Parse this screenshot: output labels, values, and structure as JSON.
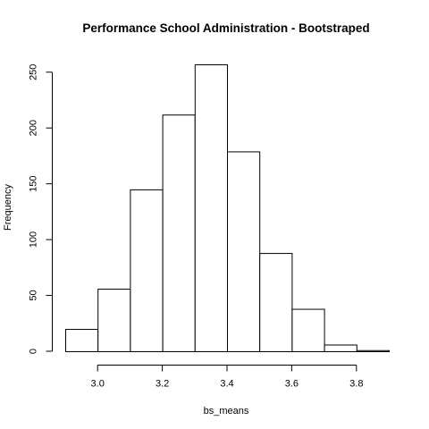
{
  "chart_data": {
    "type": "bar",
    "title": "Performance School Administration - Bootstraped",
    "xlabel": "bs_means",
    "ylabel": "Frequency",
    "bins": [
      {
        "start": 2.9,
        "end": 3.0,
        "count": 20
      },
      {
        "start": 3.0,
        "end": 3.1,
        "count": 56
      },
      {
        "start": 3.1,
        "end": 3.2,
        "count": 145
      },
      {
        "start": 3.2,
        "end": 3.3,
        "count": 212
      },
      {
        "start": 3.3,
        "end": 3.4,
        "count": 257
      },
      {
        "start": 3.4,
        "end": 3.5,
        "count": 179
      },
      {
        "start": 3.5,
        "end": 3.6,
        "count": 88
      },
      {
        "start": 3.6,
        "end": 3.7,
        "count": 38
      },
      {
        "start": 3.7,
        "end": 3.8,
        "count": 6
      },
      {
        "start": 3.8,
        "end": 3.9,
        "count": 1
      }
    ],
    "xticks": [
      "3.0",
      "3.2",
      "3.4",
      "3.6",
      "3.8"
    ],
    "yticks": [
      "0",
      "50",
      "100",
      "150",
      "200",
      "250"
    ],
    "xlim": [
      2.9,
      3.9
    ],
    "ylim": [
      0,
      260
    ],
    "grid": false,
    "legend": "none"
  }
}
